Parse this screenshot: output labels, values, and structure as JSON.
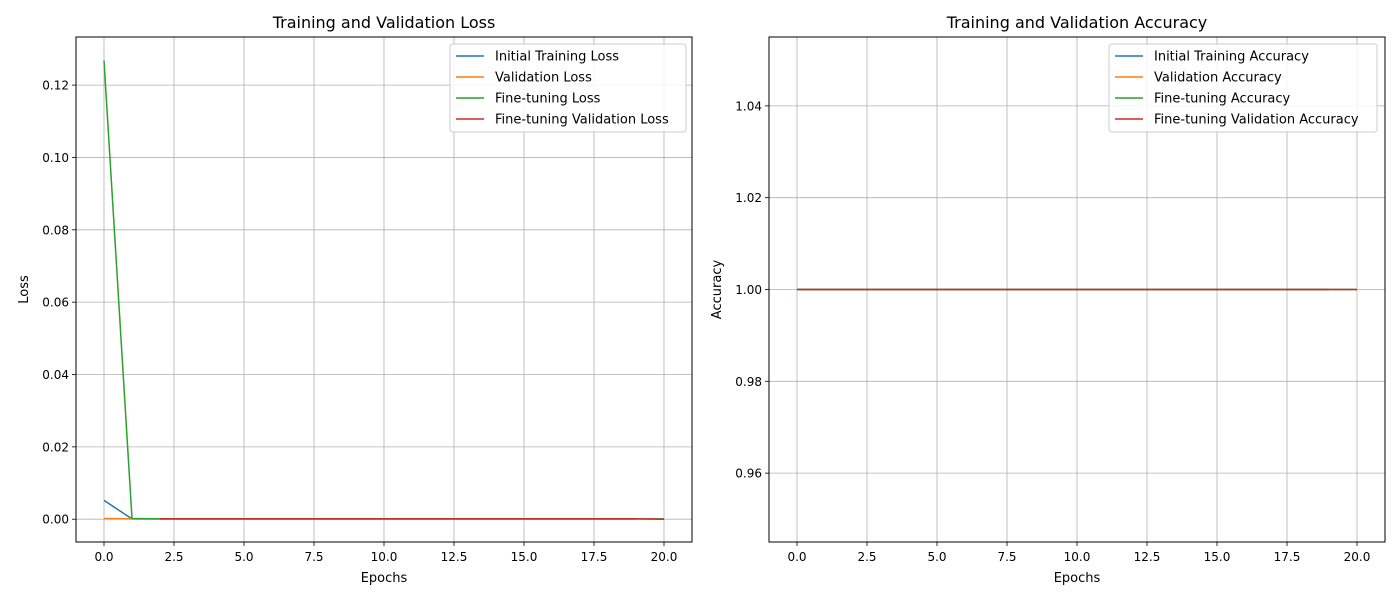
{
  "chart_data": [
    {
      "type": "line",
      "title": "Training and Validation Loss",
      "xlabel": "Epochs",
      "ylabel": "Loss",
      "xlim": [
        -1.0,
        21.0
      ],
      "ylim": [
        -0.0063,
        0.1333
      ],
      "xticks": [
        0.0,
        2.5,
        5.0,
        7.5,
        10.0,
        12.5,
        15.0,
        17.5,
        20.0
      ],
      "xtick_labels": [
        "0.0",
        "2.5",
        "5.0",
        "7.5",
        "10.0",
        "12.5",
        "15.0",
        "17.5",
        "20.0"
      ],
      "yticks": [
        0.0,
        0.02,
        0.04,
        0.06,
        0.08,
        0.1,
        0.12
      ],
      "ytick_labels": [
        "0.00",
        "0.02",
        "0.04",
        "0.06",
        "0.08",
        "0.10",
        "0.12"
      ],
      "grid": true,
      "legend_position": "top-right",
      "series": [
        {
          "name": "Initial Training Loss",
          "color": "#1f77b4",
          "x": [
            0,
            1,
            2,
            3,
            4,
            5,
            6,
            7,
            8,
            9,
            10,
            11,
            12,
            13,
            14,
            15,
            16,
            17,
            18,
            19
          ],
          "y": [
            0.0052,
            0.0001,
            0.0001,
            0.0001,
            0.0001,
            0.0001,
            0.0001,
            0.0001,
            0.0001,
            0.0001,
            0.0001,
            0.0001,
            0.0001,
            0.0001,
            0.0001,
            0.0001,
            0.0001,
            0.0001,
            0.0001,
            0.0001
          ]
        },
        {
          "name": "Validation Loss",
          "color": "#ff7f0e",
          "x": [
            0,
            1,
            2,
            3,
            4,
            5,
            6,
            7,
            8,
            9,
            10,
            11,
            12,
            13,
            14,
            15,
            16,
            17,
            18,
            19
          ],
          "y": [
            0.0002,
            0.0001,
            0.0001,
            0.0001,
            0.0001,
            0.0001,
            0.0001,
            0.0001,
            0.0001,
            0.0001,
            0.0001,
            0.0001,
            0.0001,
            0.0001,
            0.0001,
            0.0001,
            0.0001,
            0.0001,
            0.0001,
            0.0001
          ]
        },
        {
          "name": "Fine-tuning Loss",
          "color": "#2ca02c",
          "x": [
            0,
            1,
            2,
            3,
            4,
            5,
            6,
            7,
            8,
            9,
            10,
            11,
            12,
            13,
            14,
            15,
            16,
            17,
            18,
            19,
            20
          ],
          "y": [
            0.1268,
            0.0002,
            0.0001,
            0.0001,
            0.0001,
            0.0001,
            0.0001,
            0.0001,
            0.0001,
            0.0001,
            0.0001,
            0.0001,
            0.0001,
            0.0001,
            0.0001,
            0.0001,
            0.0001,
            0.0001,
            0.0001,
            0.0001,
            0.0001
          ]
        },
        {
          "name": "Fine-tuning Validation Loss",
          "color": "#d62728",
          "x": [
            2,
            3,
            4,
            5,
            6,
            7,
            8,
            9,
            10,
            11,
            12,
            13,
            14,
            15,
            16,
            17,
            18,
            19,
            20
          ],
          "y": [
            0.0001,
            0.0001,
            0.0001,
            0.0001,
            0.0001,
            0.0001,
            0.0001,
            0.0001,
            0.0001,
            0.0001,
            0.0001,
            0.0001,
            0.0001,
            0.0001,
            0.0001,
            0.0001,
            0.0001,
            0.0001,
            0.0
          ]
        }
      ]
    },
    {
      "type": "line",
      "title": "Training and Validation Accuracy",
      "xlabel": "Epochs",
      "ylabel": "Accuracy",
      "xlim": [
        -1.0,
        21.0
      ],
      "ylim": [
        0.945,
        1.055
      ],
      "xticks": [
        0.0,
        2.5,
        5.0,
        7.5,
        10.0,
        12.5,
        15.0,
        17.5,
        20.0
      ],
      "xtick_labels": [
        "0.0",
        "2.5",
        "5.0",
        "7.5",
        "10.0",
        "12.5",
        "15.0",
        "17.5",
        "20.0"
      ],
      "yticks": [
        0.96,
        0.98,
        1.0,
        1.02,
        1.04
      ],
      "ytick_labels": [
        "0.96",
        "0.98",
        "1.00",
        "1.02",
        "1.04"
      ],
      "grid": true,
      "legend_position": "top-right",
      "series": [
        {
          "name": "Initial Training Accuracy",
          "color": "#1f77b4",
          "x": [
            0,
            1,
            2,
            3,
            4,
            5,
            6,
            7,
            8,
            9,
            10,
            11,
            12,
            13,
            14,
            15,
            16,
            17,
            18,
            19
          ],
          "y": [
            1.0,
            1.0,
            1.0,
            1.0,
            1.0,
            1.0,
            1.0,
            1.0,
            1.0,
            1.0,
            1.0,
            1.0,
            1.0,
            1.0,
            1.0,
            1.0,
            1.0,
            1.0,
            1.0,
            1.0
          ]
        },
        {
          "name": "Validation Accuracy",
          "color": "#ff7f0e",
          "x": [
            0,
            1,
            2,
            3,
            4,
            5,
            6,
            7,
            8,
            9,
            10,
            11,
            12,
            13,
            14,
            15,
            16,
            17,
            18,
            19
          ],
          "y": [
            1.0,
            1.0,
            1.0,
            1.0,
            1.0,
            1.0,
            1.0,
            1.0,
            1.0,
            1.0,
            1.0,
            1.0,
            1.0,
            1.0,
            1.0,
            1.0,
            1.0,
            1.0,
            1.0,
            1.0
          ]
        },
        {
          "name": "Fine-tuning Accuracy",
          "color": "#2ca02c",
          "x": [
            0,
            1,
            2,
            3,
            4,
            5,
            6,
            7,
            8,
            9,
            10,
            11,
            12,
            13,
            14,
            15,
            16,
            17,
            18,
            19,
            20
          ],
          "y": [
            1.0,
            1.0,
            1.0,
            1.0,
            1.0,
            1.0,
            1.0,
            1.0,
            1.0,
            1.0,
            1.0,
            1.0,
            1.0,
            1.0,
            1.0,
            1.0,
            1.0,
            1.0,
            1.0,
            1.0,
            1.0
          ]
        },
        {
          "name": "Fine-tuning Validation Accuracy",
          "color": "#d62728",
          "x": [
            0,
            1,
            2,
            3,
            4,
            5,
            6,
            7,
            8,
            9,
            10,
            11,
            12,
            13,
            14,
            15,
            16,
            17,
            18,
            19,
            20
          ],
          "y": [
            1.0,
            1.0,
            1.0,
            1.0,
            1.0,
            1.0,
            1.0,
            1.0,
            1.0,
            1.0,
            1.0,
            1.0,
            1.0,
            1.0,
            1.0,
            1.0,
            1.0,
            1.0,
            1.0,
            1.0,
            1.0
          ]
        }
      ]
    }
  ]
}
